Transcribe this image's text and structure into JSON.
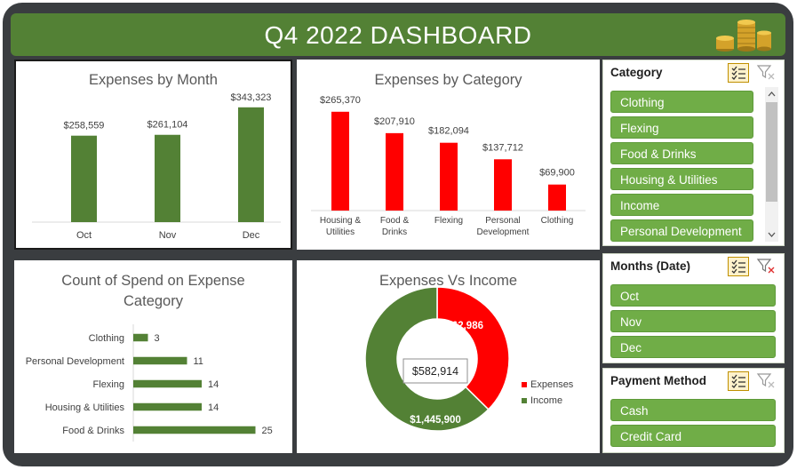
{
  "dashboard": {
    "title": "Q4 2022 DASHBOARD"
  },
  "charts": {
    "by_month": {
      "title": "Expenses by Month"
    },
    "by_category": {
      "title": "Expenses by Category"
    },
    "count": {
      "title_line1": "Count of Spend on Expense",
      "title_line2": "Category"
    },
    "vs_income": {
      "title": "Expenses Vs Income",
      "center_label": "$582,914",
      "legend": [
        "Expenses",
        "Income"
      ]
    }
  },
  "chart_data": [
    {
      "type": "bar",
      "title": "Expenses by Month",
      "categories": [
        "Oct",
        "Nov",
        "Dec"
      ],
      "values": [
        258559,
        261104,
        343323
      ],
      "labels": [
        "$258,559",
        "$261,104",
        "$343,323"
      ],
      "ylim": [
        0,
        380000
      ],
      "color": "#538135"
    },
    {
      "type": "bar",
      "title": "Expenses by Category",
      "categories": [
        [
          "Housing &",
          "Utilities"
        ],
        [
          "Food &",
          "Drinks"
        ],
        [
          "Flexing"
        ],
        [
          "Personal",
          "Development"
        ],
        [
          "Clothing"
        ]
      ],
      "values": [
        265370,
        207910,
        182094,
        137712,
        69900
      ],
      "labels": [
        "$265,370",
        "$207,910",
        "$182,094",
        "$137,712",
        "$69,900"
      ],
      "ylim": [
        0,
        290000
      ],
      "color": "#ff0000"
    },
    {
      "type": "bar",
      "orientation": "horizontal",
      "title": "Count of Spend on Expense Category",
      "categories": [
        "Clothing",
        "Personal Development",
        "Flexing",
        "Housing & Utilities",
        "Food & Drinks"
      ],
      "values": [
        3,
        11,
        14,
        14,
        25
      ],
      "xlim": [
        0,
        27
      ],
      "color": "#538135"
    },
    {
      "type": "pie",
      "donut": true,
      "title": "Expenses Vs Income",
      "categories": [
        "Expenses",
        "Income"
      ],
      "values": [
        862986,
        1445900
      ],
      "labels": [
        "$862,986",
        "$1,445,900"
      ],
      "colors": [
        "#ff0000",
        "#538135"
      ],
      "legend": "right"
    }
  ],
  "slicers": {
    "category": {
      "title": "Category",
      "items": [
        "Clothing",
        "Flexing",
        "Food & Drinks",
        "Housing & Utilities",
        "Income",
        "Personal Development"
      ]
    },
    "months": {
      "title": "Months (Date)",
      "items": [
        "Oct",
        "Nov",
        "Dec"
      ]
    },
    "payment": {
      "title": "Payment Method",
      "items": [
        "Cash",
        "Credit Card"
      ]
    }
  },
  "icons": {
    "multi_select": "multi-select-icon",
    "clear_filter": "clear-filter-icon",
    "coins": "coin-stack-icon"
  },
  "colors": {
    "accent": "#538135",
    "slicer_item": "#70ad47",
    "expense": "#ff0000",
    "frame": "#3a3d40"
  }
}
